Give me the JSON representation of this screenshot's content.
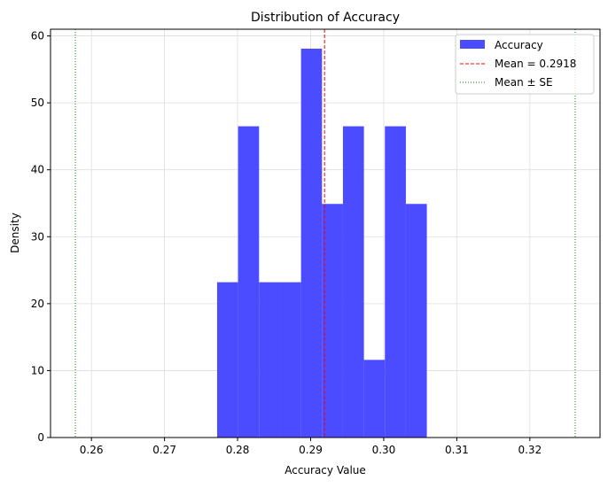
{
  "chart_data": {
    "type": "bar",
    "title": "Distribution of Accuracy",
    "xlabel": "Accuracy Value",
    "ylabel": "Density",
    "xlim": [
      0.2544,
      0.3296
    ],
    "ylim": [
      0,
      61
    ],
    "xticks": [
      "0.26",
      "0.27",
      "0.28",
      "0.29",
      "0.30",
      "0.31",
      "0.32"
    ],
    "yticks": [
      "0",
      "10",
      "20",
      "30",
      "40",
      "50",
      "60"
    ],
    "grid": true,
    "legend_position": "top-right",
    "histogram": {
      "name": "Accuracy",
      "color": "#4b4bff",
      "bin_edges": [
        0.2772,
        0.28007,
        0.28294,
        0.28581,
        0.28868,
        0.29155,
        0.29442,
        0.29729,
        0.30016,
        0.30303,
        0.3059
      ],
      "values": [
        23.2,
        46.5,
        23.2,
        23.2,
        58.1,
        34.9,
        46.5,
        11.6,
        46.5,
        34.9
      ]
    },
    "lines": [
      {
        "name": "Mean = 0.2918",
        "x": 0.2919,
        "color": "#ff0000",
        "style": "dashed"
      },
      {
        "name": "Mean ± SE",
        "x": 0.2578,
        "color": "#008000",
        "style": "dotted"
      },
      {
        "name": "Mean ± SE",
        "x": 0.3262,
        "color": "#008000",
        "style": "dotted"
      }
    ],
    "legend": [
      "Accuracy",
      "Mean = 0.2918",
      "Mean ± SE"
    ]
  }
}
